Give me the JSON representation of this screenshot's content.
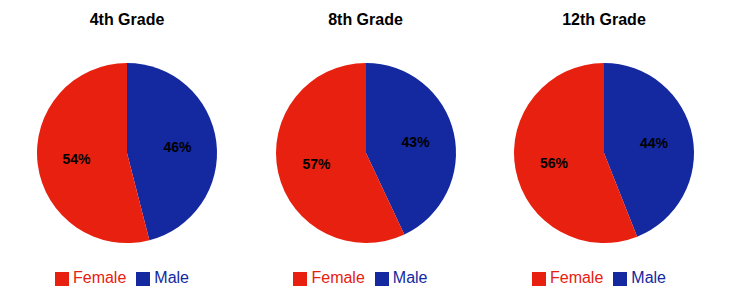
{
  "chart_data": [
    {
      "type": "pie",
      "title": "4th Grade",
      "categories": [
        "Male",
        "Female"
      ],
      "values": [
        46,
        54
      ],
      "value_labels": [
        "46%",
        "54%"
      ],
      "colors": [
        "#1428A0",
        "#E82010"
      ],
      "data_labels": true,
      "legend": "bottom"
    },
    {
      "type": "pie",
      "title": "8th Grade",
      "categories": [
        "Male",
        "Female"
      ],
      "values": [
        43,
        57
      ],
      "value_labels": [
        "43%",
        "57%"
      ],
      "colors": [
        "#1428A0",
        "#E82010"
      ],
      "data_labels": true,
      "legend": "bottom"
    },
    {
      "type": "pie",
      "title": "12th Grade",
      "categories": [
        "Male",
        "Female"
      ],
      "values": [
        44,
        56
      ],
      "value_labels": [
        "44%",
        "56%"
      ],
      "colors": [
        "#1428A0",
        "#E82010"
      ],
      "data_labels": true,
      "legend": "bottom"
    }
  ]
}
